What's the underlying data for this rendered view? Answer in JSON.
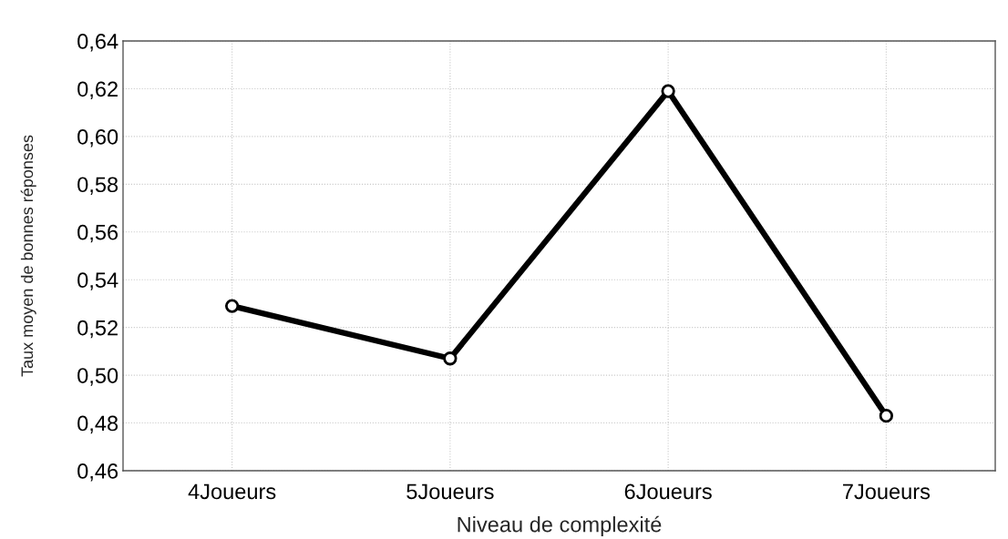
{
  "chart_data": {
    "type": "line",
    "xlabel": "Niveau de complexité",
    "ylabel": "Taux moyen de bonnes réponses",
    "categories": [
      "4Joueurs",
      "5Joueurs",
      "6Joueurs",
      "7Joueurs"
    ],
    "series": [
      {
        "color": "#000000",
        "values": [
          0.529,
          0.507,
          0.619,
          0.483
        ]
      }
    ],
    "ylim": [
      0.46,
      0.64
    ],
    "yticks": [
      {
        "value": 0.46,
        "label": "0,46"
      },
      {
        "value": 0.48,
        "label": "0,48"
      },
      {
        "value": 0.5,
        "label": "0,50"
      },
      {
        "value": 0.52,
        "label": "0,52"
      },
      {
        "value": 0.54,
        "label": "0,54"
      },
      {
        "value": 0.56,
        "label": "0,56"
      },
      {
        "value": 0.58,
        "label": "0,58"
      },
      {
        "value": 0.6,
        "label": "0,60"
      },
      {
        "value": 0.62,
        "label": "0,62"
      },
      {
        "value": 0.64,
        "label": "0,64"
      }
    ],
    "grid": true,
    "marker": "circle",
    "line_style": "solid"
  }
}
